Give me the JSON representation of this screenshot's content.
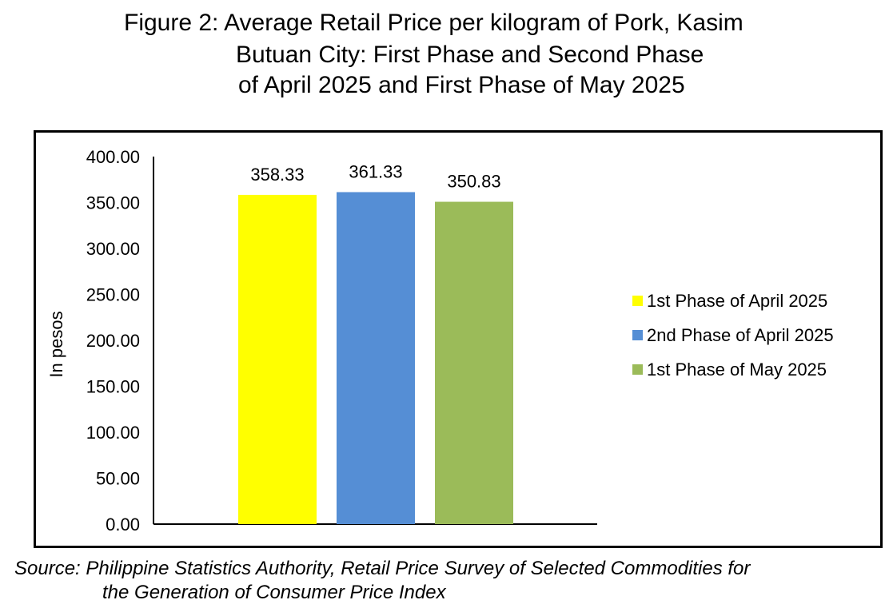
{
  "title_lines": [
    "Figure 2: Average Retail Price per kilogram of Pork, Kasim",
    "Butuan City: First Phase and Second Phase",
    "of April 2025 and First Phase of May 2025"
  ],
  "source_lines": [
    "Source: Philippine Statistics Authority, Retail Price Survey of Selected Commodities for",
    "the Generation of Consumer Price Index"
  ],
  "chart_data": {
    "type": "bar",
    "title": "Figure 2: Average Retail Price per kilogram of Pork, Kasim Butuan City: First Phase and Second Phase of April 2025 and First Phase of May 2025",
    "ylabel": "In pesos",
    "xlabel": "",
    "ylim": [
      0,
      400
    ],
    "yticks": [
      "0.00",
      "50.00",
      "100.00",
      "150.00",
      "200.00",
      "250.00",
      "300.00",
      "350.00",
      "400.00"
    ],
    "grid": false,
    "legend_position": "right",
    "series": [
      {
        "name": "1st Phase of April 2025",
        "value": 358.33,
        "label": "358.33",
        "color": "#FFFF00"
      },
      {
        "name": "2nd Phase of April 2025",
        "value": 361.33,
        "label": "361.33",
        "color": "#558ED5"
      },
      {
        "name": "1st Phase of May 2025",
        "value": 350.83,
        "label": "350.83",
        "color": "#9BBB59"
      }
    ]
  }
}
